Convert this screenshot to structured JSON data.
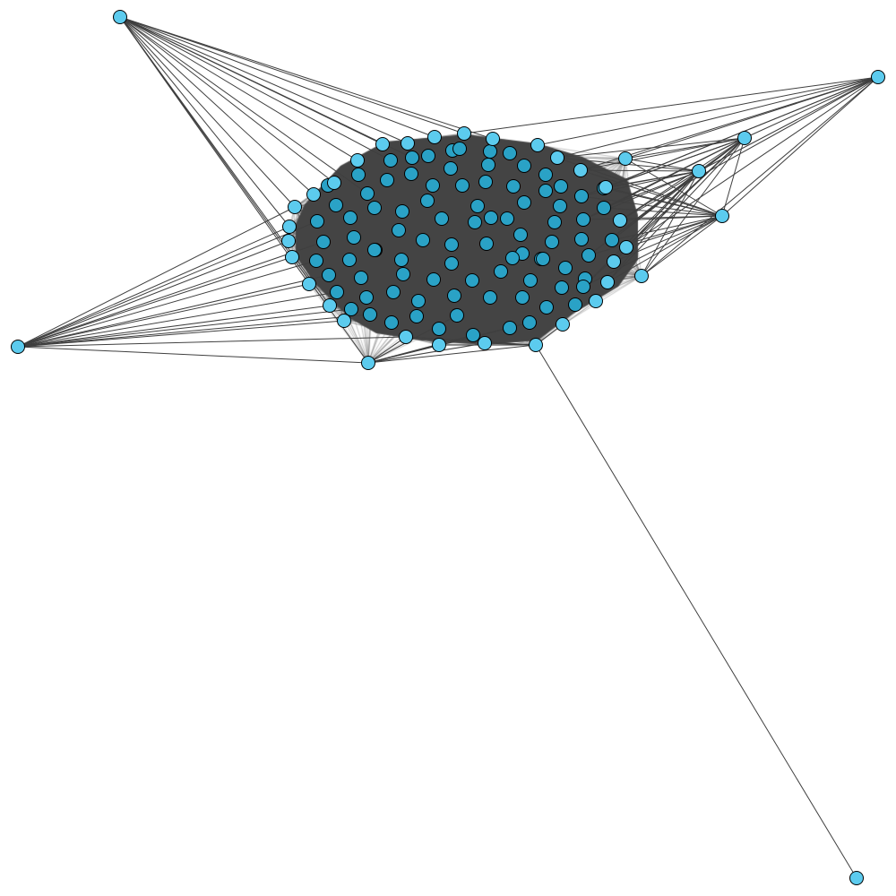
{
  "diagram": {
    "type": "network-graph",
    "colors": {
      "background": "#ffffff",
      "edge": "#3f3f3f",
      "core_mesh": "#444444",
      "node_fill_light": "#5ccbee",
      "node_fill_dense": "#2aa2c6",
      "node_stroke": "#000000"
    },
    "core_cluster_node_count": 114,
    "peripheral_node_count": 4,
    "total_node_count": 118,
    "long_edge_count": 1
  }
}
